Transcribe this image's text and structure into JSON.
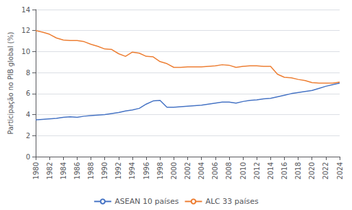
{
  "chart_data": {
    "type": "line",
    "ylabel": "Participação no PIB global (%)",
    "x": [
      1980,
      1981,
      1982,
      1983,
      1984,
      1985,
      1986,
      1987,
      1988,
      1989,
      1990,
      1991,
      1992,
      1993,
      1994,
      1995,
      1996,
      1997,
      1998,
      1999,
      2000,
      2001,
      2002,
      2003,
      2004,
      2005,
      2006,
      2007,
      2008,
      2009,
      2010,
      2011,
      2012,
      2013,
      2014,
      2015,
      2016,
      2017,
      2018,
      2019,
      2020,
      2021,
      2022,
      2023,
      2024
    ],
    "series": [
      {
        "name": "ASEAN 10 países",
        "color": "#4472C4",
        "values": [
          3.5,
          3.55,
          3.6,
          3.65,
          3.75,
          3.8,
          3.75,
          3.85,
          3.9,
          3.95,
          4.0,
          4.1,
          4.2,
          4.35,
          4.45,
          4.6,
          5.0,
          5.3,
          5.35,
          4.7,
          4.7,
          4.75,
          4.8,
          4.85,
          4.9,
          5.0,
          5.1,
          5.2,
          5.2,
          5.1,
          5.25,
          5.35,
          5.4,
          5.5,
          5.55,
          5.7,
          5.85,
          6.0,
          6.1,
          6.2,
          6.3,
          6.5,
          6.7,
          6.85,
          7.0
        ]
      },
      {
        "name": "ALC 33 países",
        "color": "#ED7D31",
        "values": [
          12.0,
          11.85,
          11.65,
          11.3,
          11.1,
          11.05,
          11.05,
          10.95,
          10.7,
          10.5,
          10.25,
          10.2,
          9.8,
          9.55,
          9.95,
          9.85,
          9.55,
          9.5,
          9.05,
          8.85,
          8.5,
          8.5,
          8.55,
          8.55,
          8.55,
          8.6,
          8.65,
          8.75,
          8.7,
          8.5,
          8.6,
          8.65,
          8.65,
          8.6,
          8.6,
          7.85,
          7.55,
          7.5,
          7.35,
          7.25,
          7.05,
          7.0,
          7.0,
          7.0,
          7.1
        ]
      }
    ],
    "xlim": [
      1980,
      2024
    ],
    "xticks": [
      1980,
      1982,
      1984,
      1986,
      1988,
      1990,
      1992,
      1994,
      1996,
      1998,
      2000,
      2002,
      2004,
      2006,
      2008,
      2010,
      2012,
      2014,
      2016,
      2018,
      2020,
      2022,
      2024
    ],
    "ylim": [
      0,
      14
    ],
    "yticks": [
      0,
      2,
      4,
      6,
      8,
      10,
      12,
      14
    ],
    "grid": true,
    "legend": "bottom"
  }
}
